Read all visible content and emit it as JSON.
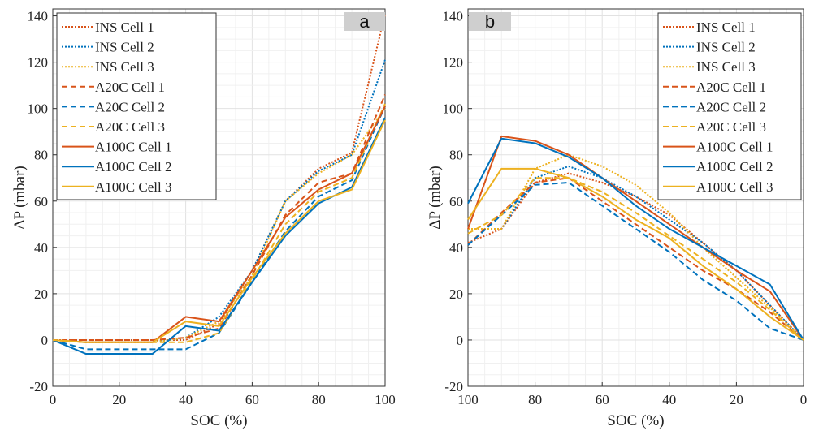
{
  "chart_data": [
    {
      "type": "line",
      "panel_label": "a",
      "xlabel": "SOC (%)",
      "ylabel": "ΔP (mbar)",
      "xlim": [
        0,
        100
      ],
      "ylim": [
        -20,
        143
      ],
      "xticks": [
        0,
        20,
        40,
        60,
        80,
        100
      ],
      "yticks": [
        -20,
        0,
        20,
        40,
        60,
        80,
        100,
        120,
        140
      ],
      "x_reversed": false,
      "grid": true,
      "legend_position": "top-left",
      "x": [
        0,
        10,
        20,
        30,
        40,
        50,
        60,
        70,
        80,
        90,
        100
      ],
      "series": [
        {
          "name": "INS Cell 1",
          "color": "#D95319",
          "style": "dotted",
          "values": [
            0,
            0,
            0,
            0,
            0,
            7,
            30,
            60,
            74,
            81,
            141
          ]
        },
        {
          "name": "INS Cell 2",
          "color": "#0072BD",
          "style": "dotted",
          "values": [
            0,
            -1,
            -1,
            -1,
            1,
            10,
            30,
            60,
            73,
            80,
            121
          ]
        },
        {
          "name": "INS Cell 3",
          "color": "#EDB120",
          "style": "dotted",
          "values": [
            0,
            -1,
            -1,
            -1,
            1,
            8,
            28,
            60,
            72,
            80,
            100
          ]
        },
        {
          "name": "A20C Cell 1",
          "color": "#D95319",
          "style": "dashed",
          "values": [
            0,
            0,
            0,
            0,
            1,
            5,
            28,
            54,
            68,
            72,
            106
          ]
        },
        {
          "name": "A20C Cell 2",
          "color": "#0072BD",
          "style": "dashed",
          "values": [
            0,
            -4,
            -4,
            -4,
            -4,
            3,
            25,
            47,
            62,
            69,
            101
          ]
        },
        {
          "name": "A20C Cell 3",
          "color": "#EDB120",
          "style": "dashed",
          "values": [
            0,
            -1,
            -1,
            -1,
            -1,
            3,
            26,
            50,
            64,
            70,
            102
          ]
        },
        {
          "name": "A100C Cell 1",
          "color": "#D95319",
          "style": "solid",
          "values": [
            0,
            -1,
            -1,
            -1,
            10,
            8,
            30,
            53,
            65,
            72,
            101
          ]
        },
        {
          "name": "A100C Cell 2",
          "color": "#0072BD",
          "style": "solid",
          "values": [
            0,
            -6,
            -6,
            -6,
            6,
            4,
            25,
            45,
            59,
            66,
            96
          ]
        },
        {
          "name": "A100C Cell 3",
          "color": "#EDB120",
          "style": "solid",
          "values": [
            0,
            -1,
            -1,
            -1,
            8,
            6,
            27,
            46,
            60,
            65,
            95
          ]
        }
      ]
    },
    {
      "type": "line",
      "panel_label": "b",
      "xlabel": "SOC (%)",
      "ylabel": "ΔP (mbar)",
      "xlim": [
        100,
        0
      ],
      "ylim": [
        -20,
        143
      ],
      "xticks": [
        100,
        80,
        60,
        40,
        20,
        0
      ],
      "yticks": [
        -20,
        0,
        20,
        40,
        60,
        80,
        100,
        120,
        140
      ],
      "x_reversed": true,
      "grid": true,
      "legend_position": "top-right",
      "x": [
        100,
        90,
        80,
        70,
        60,
        50,
        40,
        30,
        20,
        10,
        0
      ],
      "series": [
        {
          "name": "INS Cell 1",
          "color": "#D95319",
          "style": "dotted",
          "values": [
            42,
            48,
            68,
            72,
            68,
            62,
            54,
            42,
            30,
            15,
            0
          ]
        },
        {
          "name": "INS Cell 2",
          "color": "#0072BD",
          "style": "dotted",
          "values": [
            48,
            48,
            70,
            75,
            70,
            62,
            52,
            42,
            30,
            15,
            0
          ]
        },
        {
          "name": "INS Cell 3",
          "color": "#EDB120",
          "style": "dotted",
          "values": [
            48,
            48,
            74,
            80,
            75,
            67,
            55,
            40,
            27,
            14,
            0
          ]
        },
        {
          "name": "A20C Cell 1",
          "color": "#D95319",
          "style": "dashed",
          "values": [
            41,
            55,
            68,
            70,
            60,
            50,
            40,
            30,
            22,
            12,
            0
          ]
        },
        {
          "name": "A20C Cell 2",
          "color": "#0072BD",
          "style": "dashed",
          "values": [
            41,
            54,
            67,
            68,
            58,
            48,
            38,
            26,
            17,
            5,
            0
          ]
        },
        {
          "name": "A20C Cell 3",
          "color": "#EDB120",
          "style": "dashed",
          "values": [
            46,
            54,
            70,
            70,
            64,
            55,
            45,
            35,
            25,
            13,
            0
          ]
        },
        {
          "name": "A100C Cell 1",
          "color": "#D95319",
          "style": "solid",
          "values": [
            48,
            88,
            86,
            80,
            70,
            60,
            50,
            40,
            30,
            21,
            0
          ]
        },
        {
          "name": "A100C Cell 2",
          "color": "#0072BD",
          "style": "solid",
          "values": [
            59,
            87,
            85,
            79,
            70,
            58,
            48,
            40,
            32,
            24,
            0
          ]
        },
        {
          "name": "A100C Cell 3",
          "color": "#EDB120",
          "style": "solid",
          "values": [
            52,
            74,
            74,
            70,
            62,
            52,
            44,
            32,
            22,
            10,
            0
          ]
        }
      ]
    }
  ]
}
